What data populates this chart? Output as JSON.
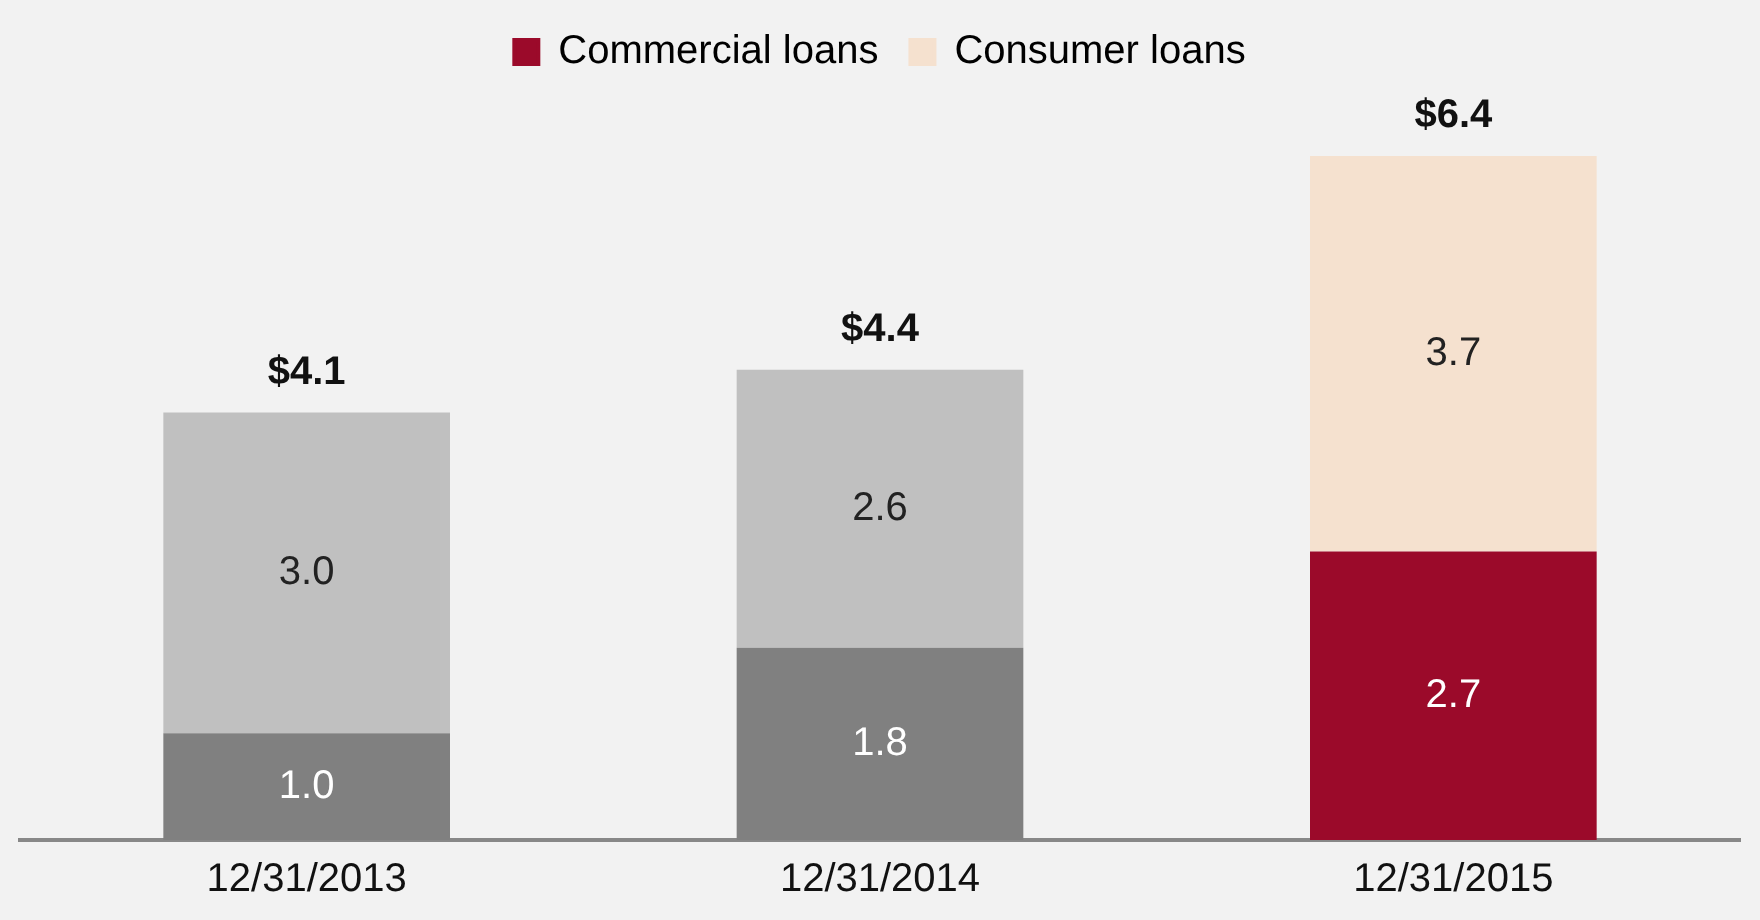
{
  "chart_data": {
    "type": "bar",
    "stacked": true,
    "categories": [
      "12/31/2013",
      "12/31/2014",
      "12/31/2015"
    ],
    "series": [
      {
        "name": "Commercial loans",
        "colors": [
          "#808080",
          "#808080",
          "#9b0a2a"
        ],
        "values": [
          1.0,
          1.8,
          2.7
        ],
        "value_labels": [
          "1.0",
          "1.8",
          "2.7"
        ]
      },
      {
        "name": "Consumer loans",
        "colors": [
          "#c0c0c0",
          "#c0c0c0",
          "#f5e1cf"
        ],
        "values": [
          3.0,
          2.6,
          3.7
        ],
        "value_labels": [
          "3.0",
          "2.6",
          "3.7"
        ]
      }
    ],
    "totals": [
      "$4.1",
      "$4.4",
      "$6.4"
    ],
    "legend": "top",
    "tick_labels": "x",
    "grid": false
  }
}
